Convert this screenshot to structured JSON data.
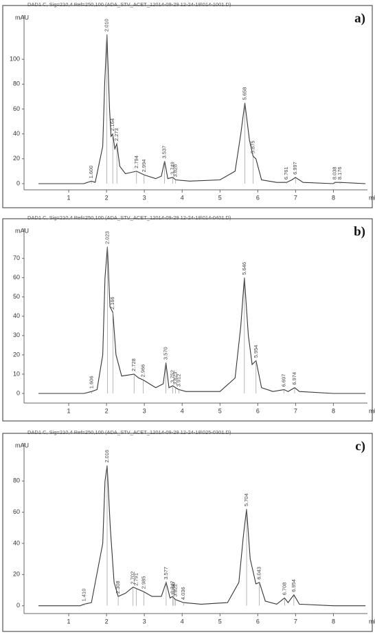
{
  "chart_data": [
    {
      "type": "line",
      "title": "DAD1 C, Sig=210,4 Ref=250,100 (ADA_STV_ACET_12014-09-29 12-24-18\\014-1001.D)",
      "panel_label": "a)",
      "ylabel": "mAU",
      "xlabel": "min",
      "xlim": [
        0,
        8.9
      ],
      "ylim": [
        -5,
        130
      ],
      "xticks": [
        1,
        2,
        3,
        4,
        5,
        6,
        7,
        8
      ],
      "yticks": [
        0,
        20,
        40,
        60,
        80,
        100
      ],
      "color": "#333",
      "x": [
        0.2,
        1.4,
        1.6,
        1.7,
        1.9,
        1.95,
        2.01,
        2.08,
        2.12,
        2.164,
        2.22,
        2.273,
        2.35,
        2.5,
        2.794,
        2.994,
        3.3,
        3.45,
        3.537,
        3.62,
        3.749,
        3.828,
        4.2,
        5.0,
        5.4,
        5.55,
        5.658,
        5.78,
        5.875,
        5.95,
        6.1,
        6.5,
        6.761,
        6.9,
        6.997,
        7.2,
        8.0,
        8.038,
        8.176,
        8.85
      ],
      "values": [
        0,
        0,
        2,
        1,
        30,
        80,
        120,
        60,
        38,
        40,
        28,
        32,
        14,
        8,
        10,
        7,
        4,
        6,
        18,
        4,
        5,
        3,
        2,
        3,
        10,
        40,
        65,
        35,
        22,
        20,
        3,
        1,
        1,
        3,
        5,
        1,
        0,
        1,
        1,
        0
      ],
      "annotations": [
        {
          "text": "1.600",
          "x": 1.6,
          "y": 2
        },
        {
          "text": "2.010",
          "x": 2.01,
          "y": 120
        },
        {
          "text": "2.164",
          "x": 2.164,
          "y": 40
        },
        {
          "text": "2.273",
          "x": 2.273,
          "y": 32
        },
        {
          "text": "2.794",
          "x": 2.794,
          "y": 10
        },
        {
          "text": "2.994",
          "x": 2.994,
          "y": 7
        },
        {
          "text": "3.537",
          "x": 3.537,
          "y": 18
        },
        {
          "text": "3.749",
          "x": 3.749,
          "y": 5
        },
        {
          "text": "3.828",
          "x": 3.828,
          "y": 3
        },
        {
          "text": "5.658",
          "x": 5.658,
          "y": 65
        },
        {
          "text": "5.875",
          "x": 5.875,
          "y": 22
        },
        {
          "text": "6.761",
          "x": 6.761,
          "y": 1
        },
        {
          "text": "6.997",
          "x": 6.997,
          "y": 5
        },
        {
          "text": "8.038",
          "x": 8.038,
          "y": 1
        },
        {
          "text": "8.176",
          "x": 8.176,
          "y": 1
        }
      ]
    },
    {
      "type": "line",
      "title": "DAD1 C, Sig=210,4 Ref=250,100 (ADA_STV_ACET_12014-09-29 12-24-18\\014-0401.D)",
      "panel_label": "b)",
      "ylabel": "mAU",
      "xlabel": "min",
      "xlim": [
        0,
        8.9
      ],
      "ylim": [
        -5,
        82
      ],
      "xticks": [
        1,
        2,
        3,
        4,
        5,
        6,
        7,
        8
      ],
      "yticks": [
        0,
        10,
        20,
        30,
        40,
        50,
        60,
        70
      ],
      "color": "#333",
      "x": [
        0.2,
        1.4,
        1.606,
        1.75,
        1.9,
        1.96,
        2.023,
        2.09,
        2.166,
        2.25,
        2.4,
        2.728,
        2.85,
        2.966,
        3.3,
        3.5,
        3.57,
        3.65,
        3.752,
        3.823,
        3.912,
        4.1,
        5.0,
        5.4,
        5.55,
        5.646,
        5.75,
        5.85,
        5.954,
        6.1,
        6.4,
        6.697,
        6.8,
        6.974,
        7.1,
        8.0,
        8.85
      ],
      "values": [
        0,
        0,
        1,
        2,
        20,
        60,
        76,
        45,
        42,
        20,
        9,
        10,
        8,
        7,
        3,
        5,
        16,
        3,
        4,
        3,
        2,
        1,
        1,
        8,
        35,
        60,
        30,
        15,
        17,
        3,
        1,
        2,
        1,
        3,
        1,
        0,
        0
      ],
      "annotations": [
        {
          "text": "1.606",
          "x": 1.606,
          "y": 1
        },
        {
          "text": "2.023",
          "x": 2.023,
          "y": 76
        },
        {
          "text": "2.166",
          "x": 2.166,
          "y": 42
        },
        {
          "text": "2.728",
          "x": 2.728,
          "y": 10
        },
        {
          "text": "2.966",
          "x": 2.966,
          "y": 7
        },
        {
          "text": "3.570",
          "x": 3.57,
          "y": 16
        },
        {
          "text": "3.752",
          "x": 3.752,
          "y": 4
        },
        {
          "text": "3.823",
          "x": 3.823,
          "y": 3
        },
        {
          "text": "3.912",
          "x": 3.912,
          "y": 2
        },
        {
          "text": "5.646",
          "x": 5.646,
          "y": 60
        },
        {
          "text": "5.954",
          "x": 5.954,
          "y": 17
        },
        {
          "text": "6.697",
          "x": 6.697,
          "y": 2
        },
        {
          "text": "6.974",
          "x": 6.974,
          "y": 3
        }
      ]
    },
    {
      "type": "line",
      "title": "DAD1 C, Sig=210,4 Ref=250,100 (ADA_STV_ACET_12014-09-29 12-24-18\\025-0301.D)",
      "panel_label": "c)",
      "ylabel": "mAU",
      "xlabel": "min",
      "xlim": [
        0,
        8.9
      ],
      "ylim": [
        -5,
        100
      ],
      "xticks": [
        1,
        2,
        3,
        4,
        5,
        6,
        7,
        8
      ],
      "yticks": [
        0,
        20,
        40,
        60,
        80
      ],
      "color": "#333",
      "x": [
        0.2,
        1.3,
        1.41,
        1.6,
        1.9,
        1.96,
        2.016,
        2.1,
        2.2,
        2.308,
        2.5,
        2.702,
        2.791,
        2.985,
        3.2,
        3.45,
        3.577,
        3.68,
        3.747,
        3.78,
        3.822,
        4.036,
        4.5,
        5.2,
        5.5,
        5.62,
        5.704,
        5.8,
        5.95,
        6.043,
        6.2,
        6.5,
        6.708,
        6.8,
        6.954,
        7.1,
        8.0,
        8.85
      ],
      "values": [
        0,
        0,
        1,
        2,
        40,
        80,
        90,
        50,
        15,
        6,
        8,
        12,
        11,
        9,
        6,
        6,
        15,
        5,
        6,
        5,
        4,
        2,
        1,
        2,
        15,
        45,
        62,
        30,
        14,
        15,
        3,
        1,
        5,
        2,
        7,
        1,
        0,
        0
      ],
      "annotations": [
        {
          "text": "1.410",
          "x": 1.41,
          "y": 1
        },
        {
          "text": "2.016",
          "x": 2.016,
          "y": 90
        },
        {
          "text": "2.308",
          "x": 2.308,
          "y": 6
        },
        {
          "text": "2.702",
          "x": 2.702,
          "y": 12
        },
        {
          "text": "2.791",
          "x": 2.791,
          "y": 11
        },
        {
          "text": "2.985",
          "x": 2.985,
          "y": 9
        },
        {
          "text": "3.577",
          "x": 3.577,
          "y": 15
        },
        {
          "text": "3.747",
          "x": 3.747,
          "y": 6
        },
        {
          "text": "3.780",
          "x": 3.78,
          "y": 5
        },
        {
          "text": "3.822",
          "x": 3.822,
          "y": 4
        },
        {
          "text": "4.036",
          "x": 4.036,
          "y": 2
        },
        {
          "text": "5.704",
          "x": 5.704,
          "y": 62
        },
        {
          "text": "6.043",
          "x": 6.043,
          "y": 15
        },
        {
          "text": "6.708",
          "x": 6.708,
          "y": 5
        },
        {
          "text": "6.954",
          "x": 6.954,
          "y": 7
        }
      ]
    }
  ]
}
